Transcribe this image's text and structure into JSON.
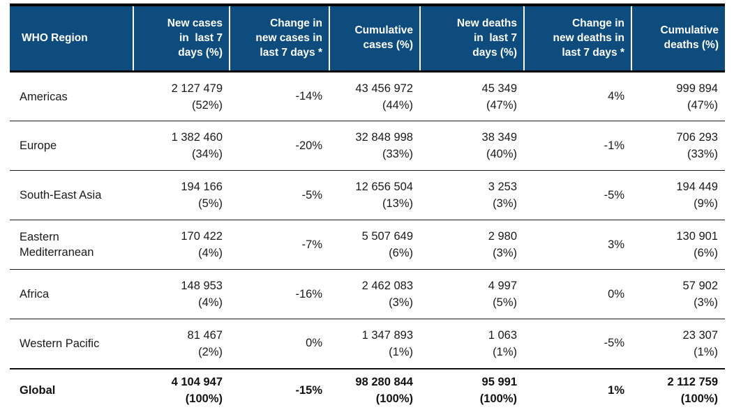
{
  "colors": {
    "header_bg": "#0e4c7d",
    "header_text": "#ffffff",
    "body_text": "#1a1a1a",
    "rule_lines": "#000000"
  },
  "table": {
    "columns": [
      {
        "key": "region",
        "label": "WHO Region"
      },
      {
        "key": "new_cases",
        "label": "New cases\nin  last 7\ndays (%)"
      },
      {
        "key": "change_new_cases",
        "label": "Change in\nnew cases in\nlast 7 days *"
      },
      {
        "key": "cumulative_cases",
        "label": "Cumulative\ncases (%)"
      },
      {
        "key": "new_deaths",
        "label": "New deaths\nin  last 7\ndays (%)"
      },
      {
        "key": "change_new_deaths",
        "label": "Change in\nnew deaths in\nlast 7 days *"
      },
      {
        "key": "cumulative_deaths",
        "label": "Cumulative\ndeaths (%)"
      }
    ],
    "rows": [
      {
        "region": "Americas",
        "is_total": false,
        "cells": [
          {
            "value": "2 127 479",
            "pct": "(52%)"
          },
          {
            "change": "-14%"
          },
          {
            "value": "43 456 972",
            "pct": "(44%)"
          },
          {
            "value": "45 349",
            "pct": "(47%)"
          },
          {
            "change": "4%"
          },
          {
            "value": "999 894",
            "pct": "(47%)"
          }
        ]
      },
      {
        "region": "Europe",
        "is_total": false,
        "cells": [
          {
            "value": "1 382 460",
            "pct": "(34%)"
          },
          {
            "change": "-20%"
          },
          {
            "value": "32 848 998",
            "pct": "(33%)"
          },
          {
            "value": "38 349",
            "pct": "(40%)"
          },
          {
            "change": "-1%"
          },
          {
            "value": "706 293",
            "pct": "(33%)"
          }
        ]
      },
      {
        "region": "South-East Asia",
        "is_total": false,
        "cells": [
          {
            "value": "194 166",
            "pct": "(5%)"
          },
          {
            "change": "-5%"
          },
          {
            "value": "12 656 504",
            "pct": "(13%)"
          },
          {
            "value": "3 253",
            "pct": "(3%)"
          },
          {
            "change": "-5%"
          },
          {
            "value": "194 449",
            "pct": "(9%)"
          }
        ]
      },
      {
        "region": "Eastern Mediterranean",
        "is_total": false,
        "cells": [
          {
            "value": "170 422",
            "pct": "(4%)"
          },
          {
            "change": "-7%"
          },
          {
            "value": "5 507 649",
            "pct": "(6%)"
          },
          {
            "value": "2 980",
            "pct": "(3%)"
          },
          {
            "change": "3%"
          },
          {
            "value": "130 901",
            "pct": "(6%)"
          }
        ]
      },
      {
        "region": "Africa",
        "is_total": false,
        "cells": [
          {
            "value": "148 953",
            "pct": "(4%)"
          },
          {
            "change": "-16%"
          },
          {
            "value": "2 462 083",
            "pct": "(3%)"
          },
          {
            "value": "4 997",
            "pct": "(5%)"
          },
          {
            "change": "0%"
          },
          {
            "value": "57 902",
            "pct": "(3%)"
          }
        ]
      },
      {
        "region": "Western Pacific",
        "is_total": false,
        "cells": [
          {
            "value": "81 467",
            "pct": "(2%)"
          },
          {
            "change": "0%"
          },
          {
            "value": "1 347 893",
            "pct": "(1%)"
          },
          {
            "value": "1 063",
            "pct": "(1%)"
          },
          {
            "change": "-5%"
          },
          {
            "value": "23 307",
            "pct": "(1%)"
          }
        ]
      },
      {
        "region": "Global",
        "is_total": true,
        "cells": [
          {
            "value": "4 104 947",
            "pct": "(100%)"
          },
          {
            "change": "-15%"
          },
          {
            "value": "98 280 844",
            "pct": "(100%)"
          },
          {
            "value": "95 991",
            "pct": "(100%)"
          },
          {
            "change": "1%"
          },
          {
            "value": "2 112 759",
            "pct": "(100%)"
          }
        ]
      }
    ]
  }
}
